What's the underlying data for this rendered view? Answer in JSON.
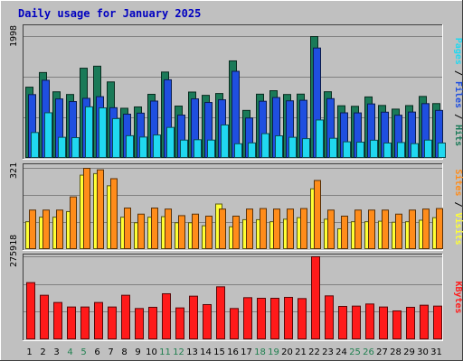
{
  "chart_data": {
    "type": "bar",
    "title": "Daily usage for January 2025",
    "xlabel": "",
    "grid": true,
    "colors": {
      "hits": "#1a7a58",
      "files": "#1f4fe0",
      "pages": "#20d8f0",
      "visits": "#ffff33",
      "sites": "#ff8c1a",
      "kbytes": "#ff1a1a",
      "title": "#0000c0",
      "weekend_day": "#208050",
      "weekday_day": "#000000",
      "background": "#c0c0c0",
      "label_pages": "#20d8f0",
      "label_files": "#1f4fe0",
      "label_hits": "#1a7a58",
      "label_sites": "#ff8c1a",
      "label_visits": "#ffff33",
      "label_kbytes": "#ff1a1a"
    },
    "categories": [
      "1",
      "2",
      "3",
      "4",
      "5",
      "6",
      "7",
      "8",
      "9",
      "10",
      "11",
      "12",
      "13",
      "14",
      "15",
      "16",
      "17",
      "18",
      "19",
      "20",
      "21",
      "22",
      "23",
      "24",
      "25",
      "26",
      "27",
      "28",
      "29",
      "30",
      "31"
    ],
    "weekend_days": [
      4,
      5,
      11,
      12,
      18,
      19,
      25,
      26
    ],
    "panels": [
      {
        "id": "hits-files-pages",
        "ymax_label": "1998",
        "ymax": 1998,
        "ylabel_parts": [
          {
            "text": "Pages",
            "color_key": "label_pages"
          },
          {
            "text": " / ",
            "color_key": "weekday_day"
          },
          {
            "text": "Files",
            "color_key": "label_files"
          },
          {
            "text": " / ",
            "color_key": "weekday_day"
          },
          {
            "text": "Hits",
            "color_key": "label_hits"
          }
        ],
        "series": [
          {
            "name": "Hits",
            "color_key": "hits",
            "values": [
              1168,
              1408,
              1092,
              1048,
              1479,
              1512,
              1254,
              822,
              844,
              1051,
              1416,
              858,
              1088,
              1034,
              1064,
              1599,
              787,
              1053,
              1110,
              1048,
              1054,
              1998,
              1093,
              863,
              854,
              1008,
              868,
              808,
              866,
              1016,
              899
            ]
          },
          {
            "name": "Files",
            "color_key": "files",
            "values": [
              1046,
              1281,
              975,
              932,
              985,
              1012,
              831,
              725,
              742,
              940,
              1289,
              710,
              976,
              917,
              961,
              1428,
              662,
              937,
              998,
              944,
              953,
              1810,
              980,
              747,
              746,
              893,
              758,
              708,
              760,
              898,
              787
            ]
          },
          {
            "name": "Pages",
            "color_key": "pages",
            "values": [
              424,
              748,
              346,
              340,
              846,
              828,
              652,
              372,
              350,
              384,
              508,
              300,
              306,
              300,
              548,
              240,
              254,
              406,
              370,
              346,
              324,
              630,
              330,
              272,
              266,
              298,
              252,
              260,
              242,
              300,
              252
            ]
          }
        ]
      },
      {
        "id": "visits-sites",
        "ymax_label": "321",
        "ymax": 321,
        "ylabel_parts": [
          {
            "text": "Sites",
            "color_key": "label_sites"
          },
          {
            "text": " / ",
            "color_key": "weekday_day"
          },
          {
            "text": "Visits",
            "color_key": "label_visits"
          }
        ],
        "series": [
          {
            "name": "Visits",
            "color_key": "visits",
            "values": [
              110,
              128,
              128,
              150,
              294,
              300,
              252,
              128,
              106,
              128,
              130,
              106,
              106,
              94,
              180,
              90,
              118,
              118,
              110,
              120,
              126,
              240,
              120,
              82,
              110,
              110,
              112,
              108,
              110,
              116,
              126
            ]
          },
          {
            "name": "Sites",
            "color_key": "sites",
            "values": [
              156,
              156,
              156,
              208,
              321,
              315,
              280,
              164,
              140,
              164,
              160,
              134,
              140,
              132,
              160,
              132,
              160,
              162,
              160,
              160,
              162,
              273,
              156,
              132,
              156,
              156,
              156,
              140,
              156,
              160,
              162
            ]
          }
        ]
      },
      {
        "id": "kbytes",
        "ymax_label": "275918",
        "ymax": 275918,
        "ylabel_parts": [
          {
            "text": "KBytes",
            "color_key": "label_kbytes"
          }
        ],
        "series": [
          {
            "name": "KBytes",
            "color_key": "kbytes",
            "values": [
              190000,
              148000,
              124000,
              109000,
              109000,
              124000,
              109000,
              148000,
              104000,
              108000,
              153000,
              106000,
              145000,
              117000,
              176000,
              104000,
              140000,
              138000,
              138000,
              141000,
              137000,
              275918,
              146000,
              111000,
              112000,
              119000,
              109000,
              96000,
              108000,
              115000,
              112000
            ]
          }
        ]
      }
    ]
  }
}
